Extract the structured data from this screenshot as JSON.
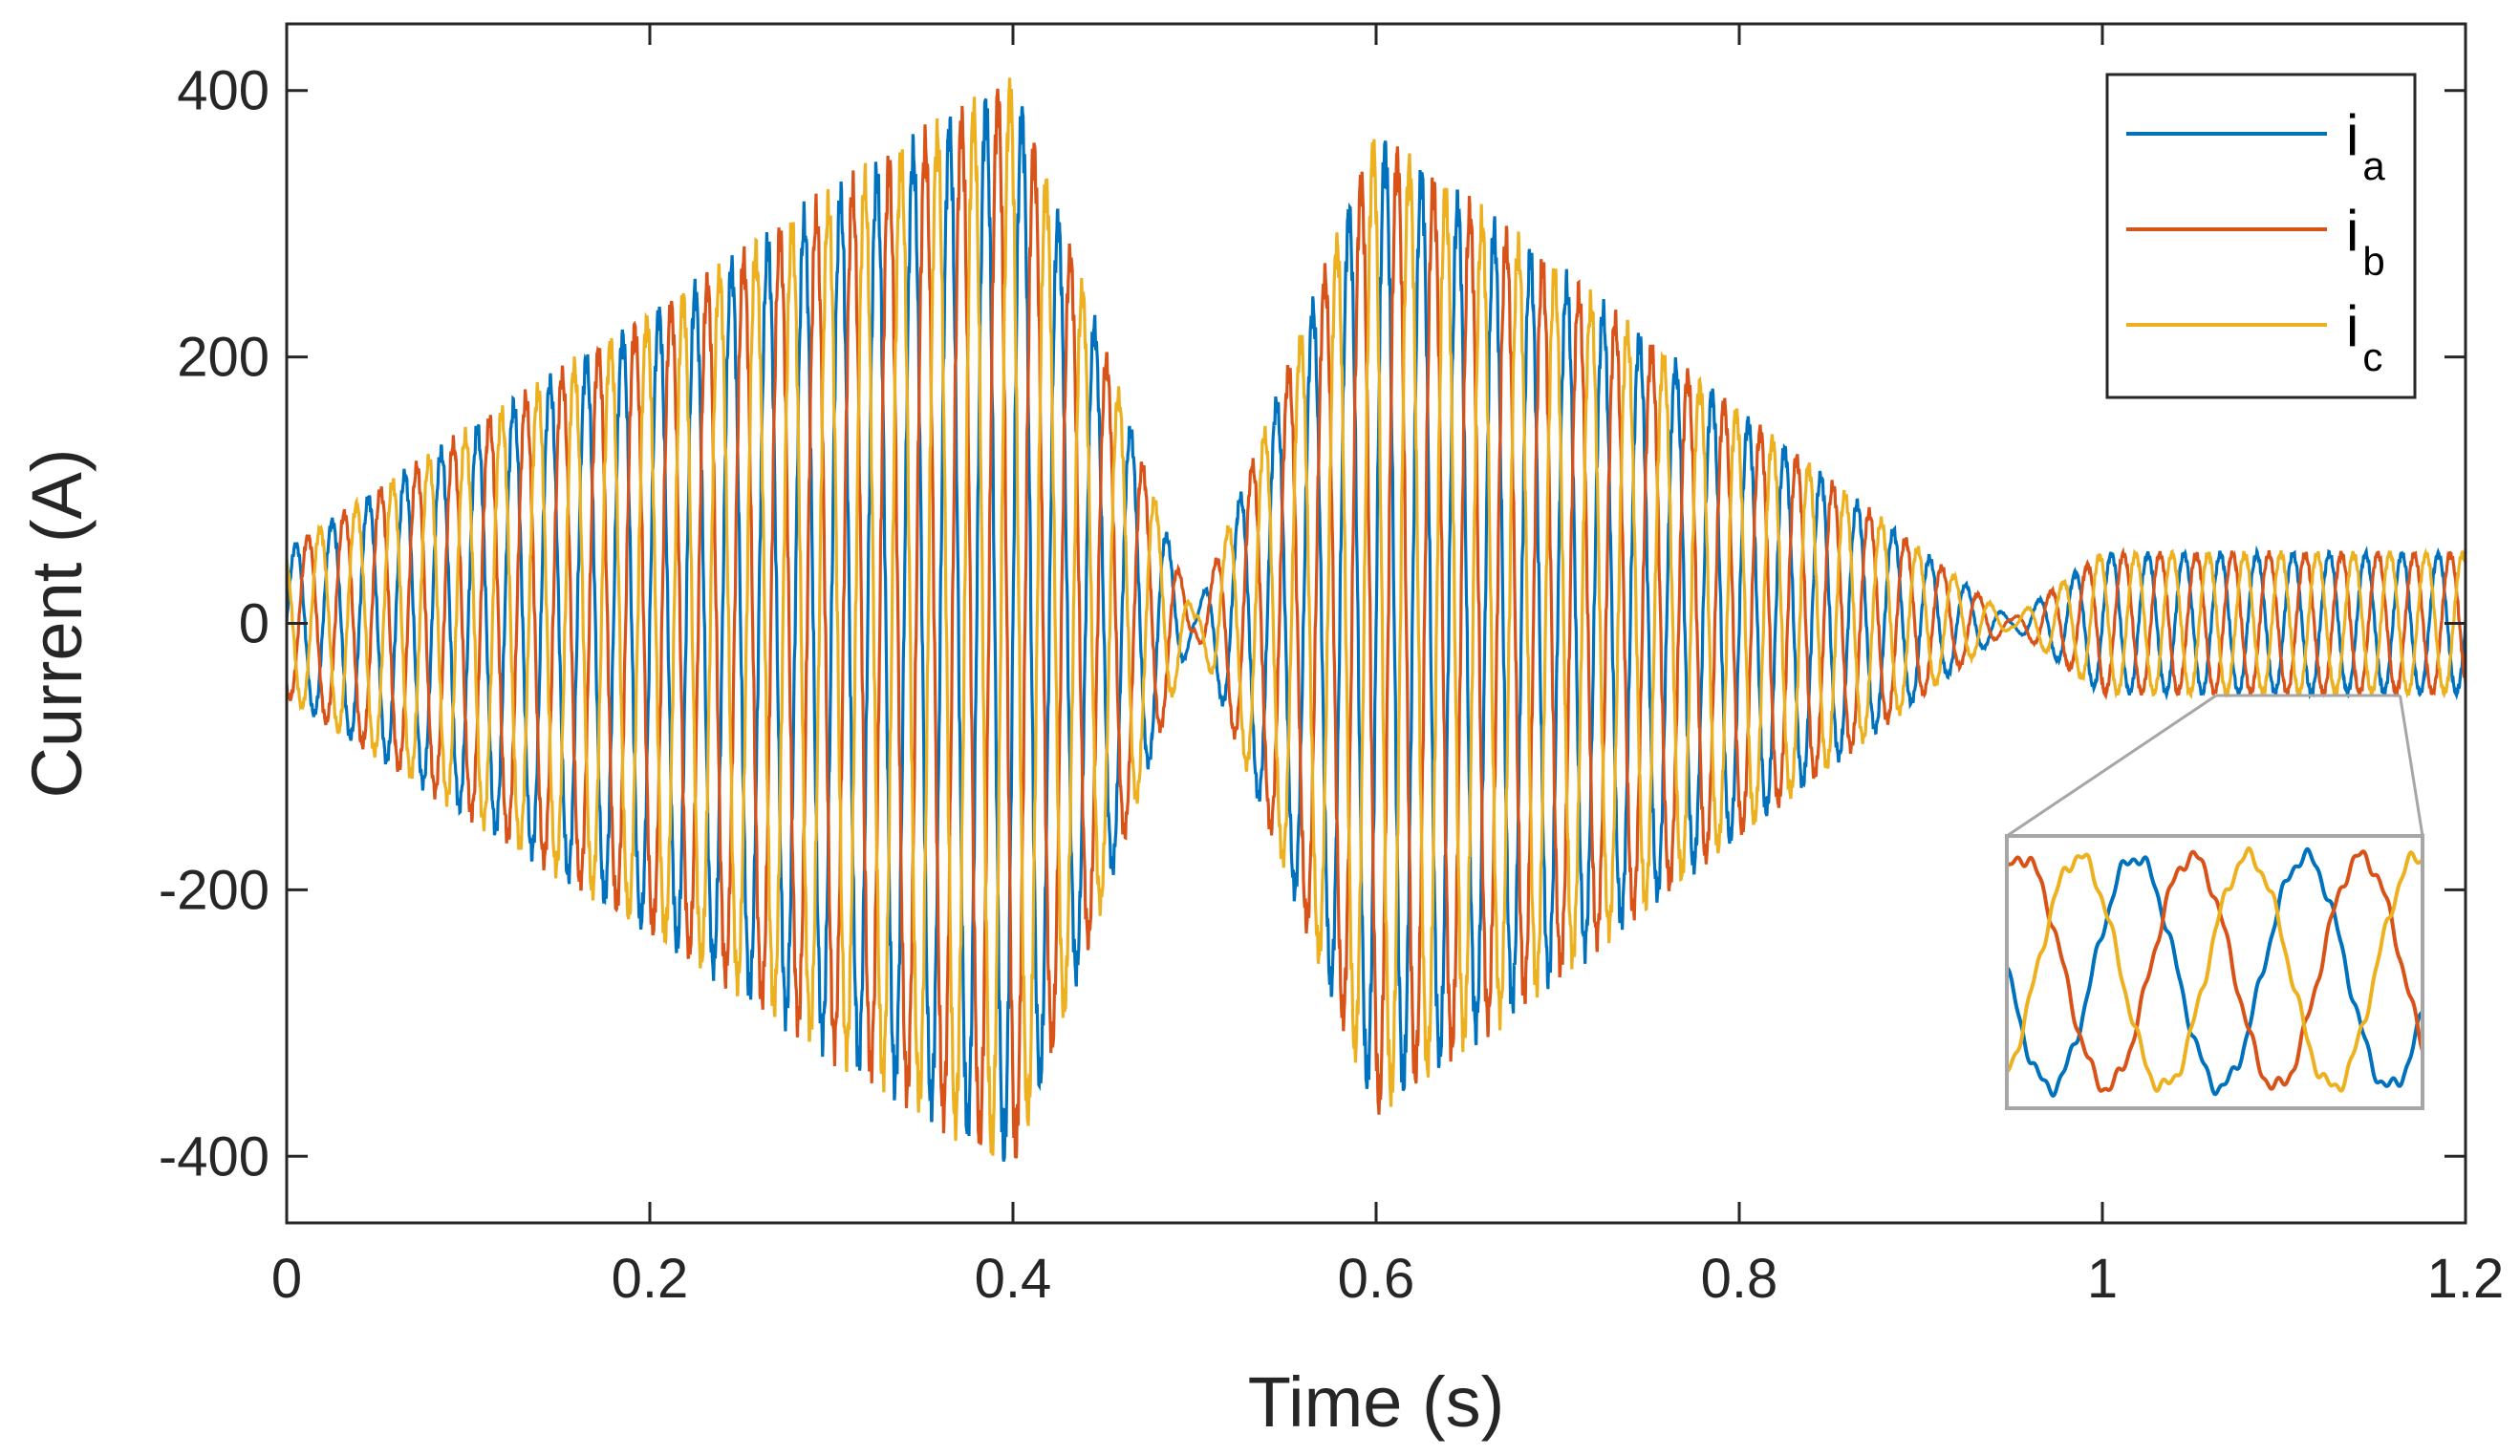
{
  "chart_data": {
    "type": "line",
    "title": "",
    "xlabel": "Time (s)",
    "ylabel": "Current (A)",
    "xlim": [
      0,
      1.2
    ],
    "ylim": [
      -450,
      450
    ],
    "xticks": [
      0,
      0.2,
      0.4,
      0.6,
      0.8,
      1,
      1.2
    ],
    "xtick_labels": [
      "0",
      "0.2",
      "0.4",
      "0.6",
      "0.8",
      "1",
      "1.2"
    ],
    "yticks": [
      -400,
      -200,
      0,
      200,
      400
    ],
    "ytick_labels": [
      "-400",
      "-200",
      "0",
      "200",
      "400"
    ],
    "grid": false,
    "legend_position": "top-right",
    "frequency_hz": 50,
    "series": [
      {
        "name": "i_a",
        "label_main": "i",
        "label_sub": "a",
        "color": "#0072BD",
        "phase_deg": 0
      },
      {
        "name": "i_b",
        "label_main": "i",
        "label_sub": "b",
        "color": "#D95319",
        "phase_deg": -120
      },
      {
        "name": "i_c",
        "label_main": "i",
        "label_sub": "c",
        "color": "#EDB120",
        "phase_deg": 120
      }
    ],
    "amplitude_envelope": {
      "t": [
        0,
        0.4,
        0.5,
        0.6,
        0.95,
        1.0,
        1.2
      ],
      "amplitude": [
        55,
        400,
        5,
        360,
        3,
        52,
        52
      ]
    },
    "inset": {
      "description_source_range_s": [
        1.02,
        1.1
      ],
      "shows": "zoomed steady-state three-phase waveform"
    }
  },
  "colors": {
    "axes": "#262626",
    "ia": "#0072BD",
    "ib": "#D95319",
    "ic": "#EDB120",
    "inset_frame": "#a6a6a6"
  }
}
